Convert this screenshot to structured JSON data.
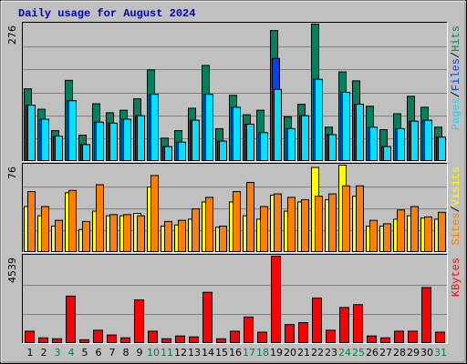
{
  "chart_data": {
    "type": "bar",
    "title": "Daily usage for August 2024",
    "categories": [
      "1",
      "2",
      "3",
      "4",
      "5",
      "6",
      "7",
      "8",
      "9",
      "10",
      "11",
      "12",
      "13",
      "14",
      "15",
      "16",
      "17",
      "18",
      "19",
      "20",
      "21",
      "22",
      "23",
      "24",
      "25",
      "26",
      "27",
      "28",
      "29",
      "30",
      "31"
    ],
    "category_colors": [
      "#000000",
      "#000000",
      "#008040",
      "#008040",
      "#000000",
      "#000000",
      "#000000",
      "#000000",
      "#000000",
      "#008040",
      "#008040",
      "#000000",
      "#000000",
      "#000000",
      "#000000",
      "#000000",
      "#008040",
      "#008040",
      "#000000",
      "#000000",
      "#000000",
      "#000000",
      "#000000",
      "#008040",
      "#008040",
      "#000000",
      "#000000",
      "#000000",
      "#000000",
      "#000000",
      "#008040"
    ],
    "separator": "/",
    "panels": [
      {
        "ylim": [
          0,
          276
        ],
        "yticks": [
          276
        ],
        "series": [
          {
            "name": "Hits",
            "color": "#00805c",
            "values": [
              146,
              105,
              62,
              163,
              53,
              116,
              98,
              103,
              126,
              184,
              47,
              62,
              107,
              193,
              66,
              133,
              94,
              103,
              263,
              90,
              115,
              276,
              69,
              180,
              162,
              111,
              64,
              96,
              131,
              109,
              69
            ]
          },
          {
            "name": "Files",
            "color": "#0040ff",
            "values": [
              113,
              85,
              51,
              122,
              34,
              79,
              77,
              85,
              92,
              135,
              30,
              39,
              83,
              135,
              41,
              109,
              75,
              58,
              207,
              66,
              92,
              165,
              54,
              139,
              115,
              69,
              30,
              66,
              81,
              83,
              49
            ]
          },
          {
            "name": "Pages",
            "color": "#00e0ff",
            "values": [
              113,
              85,
              51,
              122,
              34,
              79,
              77,
              85,
              92,
              135,
              30,
              39,
              83,
              135,
              41,
              109,
              75,
              58,
              145,
              66,
              92,
              165,
              54,
              139,
              115,
              69,
              30,
              66,
              81,
              83,
              49
            ]
          }
        ]
      },
      {
        "ylim": [
          0,
          76
        ],
        "yticks": [
          76
        ],
        "series": [
          {
            "name": "Visits",
            "color": "#ffff00",
            "values": [
              40,
              32,
              23,
              52,
              20,
              36,
              32,
              32,
              34,
              57,
              23,
              24,
              29,
              44,
              22,
              44,
              32,
              29,
              50,
              36,
              44,
              74,
              46,
              76,
              49,
              23,
              23,
              29,
              32,
              30,
              29
            ]
          },
          {
            "name": "Sites",
            "color": "#ff8000",
            "values": [
              53,
              40,
              28,
              54,
              27,
              59,
              33,
              33,
              32,
              67,
              27,
              28,
              38,
              48,
              23,
              53,
              61,
              40,
              51,
              48,
              46,
              49,
              51,
              58,
              58,
              28,
              25,
              37,
              40,
              31,
              35
            ]
          }
        ]
      },
      {
        "ylim": [
          0,
          4539
        ],
        "yticks": [
          4539
        ],
        "series": [
          {
            "name": "KBytes",
            "color": "#ff0000",
            "values": [
              641,
              296,
              247,
              2465,
              197,
              690,
              444,
              296,
              2268,
              641,
              247,
              394,
              345,
              2662,
              247,
              641,
              1380,
              592,
              4539,
              986,
              1085,
              2366,
              690,
              1873,
              2021,
              394,
              296,
              641,
              641,
              2909,
              592
            ]
          }
        ]
      }
    ]
  }
}
